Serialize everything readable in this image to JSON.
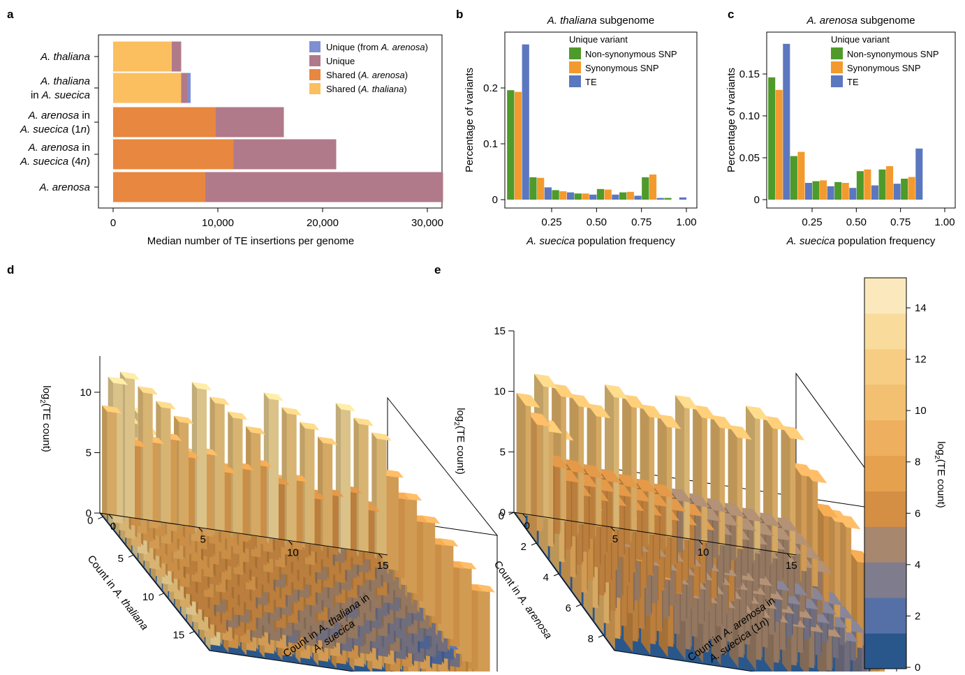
{
  "colors": {
    "unique_from_arenosa": "#7f8fd1",
    "unique": "#b07a8a",
    "shared_arenosa": "#e8873f",
    "shared_thaliana": "#fbbf5f",
    "nonsyn": "#4e9a2a",
    "syn": "#f39a2e",
    "te": "#5b77bf"
  },
  "chart_data": [
    {
      "panel": "a",
      "type": "bar",
      "orientation": "horizontal",
      "stacked": true,
      "categories": [
        "A. thaliana",
        "A. thaliana in A. suecica",
        "A. arenosa in A. suecica (1n)",
        "A. arenosa in A. suecica (4n)",
        "A. arenosa"
      ],
      "category_lines": [
        [
          "A. thaliana"
        ],
        [
          "A. thaliana",
          "in A. suecica"
        ],
        [
          "A. arenosa in",
          "A. suecica (1n)"
        ],
        [
          "A. arenosa in",
          "A. suecica (4n)"
        ],
        [
          "A. arenosa"
        ]
      ],
      "series": [
        {
          "name": "Shared (A. thaliana)",
          "color": "#fbbf5f",
          "values": [
            5600,
            6500,
            0,
            0,
            0
          ]
        },
        {
          "name": "Shared (A. arenosa)",
          "color": "#e8873f",
          "values": [
            0,
            0,
            9800,
            11500,
            8800
          ]
        },
        {
          "name": "Unique",
          "color": "#b07a8a",
          "values": [
            900,
            600,
            6500,
            9800,
            22700
          ]
        },
        {
          "name": "Unique (from A. arenosa)",
          "color": "#7f8fd1",
          "values": [
            0,
            300,
            0,
            0,
            0
          ]
        }
      ],
      "legend_order": [
        "Unique (from A. arenosa)",
        "Unique",
        "Shared (A. arenosa)",
        "Shared (A. thaliana)"
      ],
      "legend_position": "top-right",
      "xlabel": "Median number of TE insertions per genome",
      "xlim": [
        0,
        32000
      ],
      "xticks": [
        "0",
        "10,000",
        "20,000",
        "30,000"
      ],
      "xtick_values": [
        0,
        10000,
        20000,
        30000
      ]
    },
    {
      "panel": "b",
      "type": "bar",
      "title": "A. thaliana subgenome",
      "legend_title": "Unique variant",
      "x": [
        0.125,
        0.25,
        0.375,
        0.5,
        0.625,
        0.75,
        0.875,
        1.0
      ],
      "series": [
        {
          "name": "Non-synonymous SNP",
          "color": "#4e9a2a",
          "values": [
            0.196,
            0.04,
            0.017,
            0.011,
            0.019,
            0.013,
            0.04,
            0.003
          ]
        },
        {
          "name": "Synonymous SNP",
          "color": "#f39a2e",
          "values": [
            0.193,
            0.039,
            0.015,
            0.011,
            0.018,
            0.014,
            0.045,
            0.0
          ]
        },
        {
          "name": "TE",
          "color": "#5b77bf",
          "values": [
            0.278,
            0.022,
            0.013,
            0.009,
            0.009,
            0.007,
            0.003,
            0.004
          ]
        }
      ],
      "xlabel": "A. suecica population frequency",
      "ylabel": "Percentage of variants",
      "xticks": [
        "0.25",
        "0.50",
        "0.75",
        "1.00"
      ],
      "yticks": [
        "0",
        "0.1",
        "0.2"
      ],
      "ylim": [
        0,
        0.3
      ]
    },
    {
      "panel": "c",
      "type": "bar",
      "title": "A. arenosa subgenome",
      "legend_title": "Unique variant",
      "x": [
        0.125,
        0.25,
        0.375,
        0.5,
        0.625,
        0.75,
        0.875,
        1.0
      ],
      "series": [
        {
          "name": "Non-synonymous SNP",
          "color": "#4e9a2a",
          "values": [
            0.146,
            0.052,
            0.022,
            0.021,
            0.034,
            0.036,
            0.025,
            0.0
          ]
        },
        {
          "name": "Synonymous SNP",
          "color": "#f39a2e",
          "values": [
            0.131,
            0.057,
            0.023,
            0.02,
            0.036,
            0.04,
            0.027,
            0.0
          ]
        },
        {
          "name": "TE",
          "color": "#5b77bf",
          "values": [
            0.186,
            0.02,
            0.016,
            0.014,
            0.017,
            0.019,
            0.061,
            0.0
          ]
        }
      ],
      "xlabel": "A. suecica population frequency",
      "ylabel": "Percentage of variants",
      "xticks": [
        "0.25",
        "0.50",
        "0.75",
        "1.00"
      ],
      "yticks": [
        "0",
        "0.05",
        "0.10",
        "0.15"
      ],
      "ylim": [
        0,
        0.2
      ]
    },
    {
      "panel": "d",
      "type": "heatmap",
      "style": "3d-bars",
      "zlabel": "log2(TE count)",
      "xlabel": "Count in A. thaliana",
      "ylabel": "Count in A. thaliana in A. suecica",
      "xrange": [
        0,
        18
      ],
      "yrange": [
        0,
        16
      ],
      "zrange": [
        0,
        13
      ],
      "xticks": [
        "0",
        "5",
        "10",
        "15"
      ],
      "yticks": [
        "0",
        "5",
        "10",
        "15"
      ],
      "zticks": [
        "0",
        "5",
        "10"
      ]
    },
    {
      "panel": "e",
      "type": "heatmap",
      "style": "3d-bars",
      "zlabel": "log2(TE count)",
      "xlabel": "Count in A. arenosa",
      "ylabel": "Count in A. arenosa in A. suecica (1n)",
      "xrange": [
        0,
        9
      ],
      "yrange": [
        0,
        16
      ],
      "zrange": [
        0,
        15
      ],
      "xticks": [
        "0",
        "2",
        "4",
        "6",
        "8"
      ],
      "yticks": [
        "0",
        "5",
        "10",
        "15"
      ],
      "zticks": [
        "0",
        "5",
        "10",
        "15"
      ]
    },
    {
      "panel": "colorbar",
      "type": "heatmap",
      "label": "log2(TE count)",
      "range": [
        0,
        15
      ],
      "ticks": [
        "0",
        "2",
        "4",
        "6",
        "8",
        "10",
        "12",
        "14"
      ],
      "colors": [
        "#2a578b",
        "#5570a6",
        "#7f7c8e",
        "#a7876d",
        "#d48f44",
        "#e6a14f",
        "#eeb05f",
        "#f2c070",
        "#f6cd82",
        "#f9dc9c",
        "#fbe9bd"
      ]
    }
  ],
  "labels": {
    "a": "a",
    "b": "b",
    "c": "c",
    "d": "d",
    "e": "e"
  }
}
